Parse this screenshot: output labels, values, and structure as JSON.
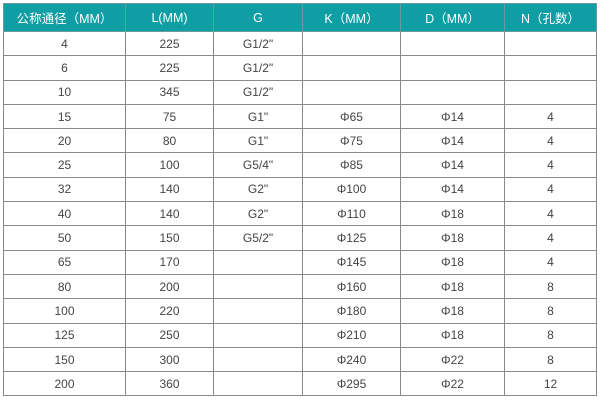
{
  "header_color": "#0e9ea4",
  "headers": [
    "公称通径（MM）",
    "L(MM)",
    "G",
    "K（MM）",
    "D（MM）",
    "N（孔数）"
  ],
  "rows": [
    [
      "4",
      "225",
      "G1/2\"",
      "",
      "",
      ""
    ],
    [
      "6",
      "225",
      "G1/2\"",
      "",
      "",
      ""
    ],
    [
      "10",
      "345",
      "G1/2\"",
      "",
      "",
      ""
    ],
    [
      "15",
      "75",
      "G1\"",
      "Φ65",
      "Φ14",
      "4"
    ],
    [
      "20",
      "80",
      "G1\"",
      "Φ75",
      "Φ14",
      "4"
    ],
    [
      "25",
      "100",
      "G5/4\"",
      "Φ85",
      "Φ14",
      "4"
    ],
    [
      "32",
      "140",
      "G2\"",
      "Φ100",
      "Φ14",
      "4"
    ],
    [
      "40",
      "140",
      "G2\"",
      "Φ110",
      "Φ18",
      "4"
    ],
    [
      "50",
      "150",
      "G5/2\"",
      "Φ125",
      "Φ18",
      "4"
    ],
    [
      "65",
      "170",
      "",
      "Φ145",
      "Φ18",
      "4"
    ],
    [
      "80",
      "200",
      "",
      "Φ160",
      "Φ18",
      "8"
    ],
    [
      "100",
      "220",
      "",
      "Φ180",
      "Φ18",
      "8"
    ],
    [
      "125",
      "250",
      "",
      "Φ210",
      "Φ18",
      "8"
    ],
    [
      "150",
      "300",
      "",
      "Φ240",
      "Φ22",
      "8"
    ],
    [
      "200",
      "360",
      "",
      "Φ295",
      "Φ22",
      "12"
    ]
  ]
}
